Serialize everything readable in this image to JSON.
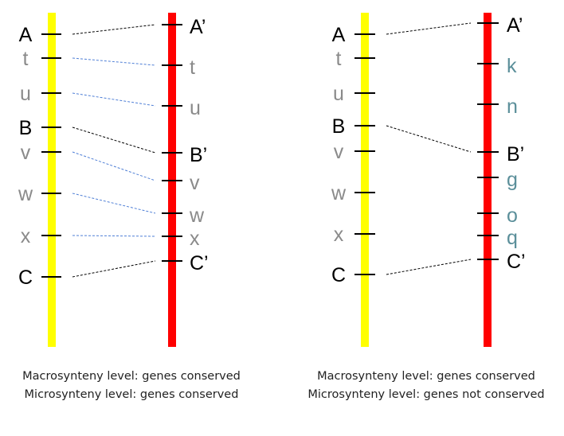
{
  "colors": {
    "chromosome_a": "#ffff00",
    "chromosome_b": "#ff0000",
    "anchor_label": "#000000",
    "conserved_gene_label": "#8a8a8a",
    "nonconserved_gene_label": "#5b8f9a",
    "macro_link": "#000000",
    "micro_link": "#4f7fd6"
  },
  "panels": [
    {
      "left_chromosome": {
        "genes": [
          {
            "label": "A",
            "kind": "anchor"
          },
          {
            "label": "t",
            "kind": "gene"
          },
          {
            "label": "u",
            "kind": "gene"
          },
          {
            "label": "B",
            "kind": "anchor"
          },
          {
            "label": "v",
            "kind": "gene"
          },
          {
            "label": "w",
            "kind": "gene"
          },
          {
            "label": "x",
            "kind": "gene"
          },
          {
            "label": "C",
            "kind": "anchor"
          }
        ]
      },
      "right_chromosome": {
        "genes": [
          {
            "label": "A’",
            "kind": "anchor"
          },
          {
            "label": "t",
            "kind": "gene"
          },
          {
            "label": "u",
            "kind": "gene"
          },
          {
            "label": "B’",
            "kind": "anchor"
          },
          {
            "label": "v",
            "kind": "gene"
          },
          {
            "label": "w",
            "kind": "gene"
          },
          {
            "label": "x",
            "kind": "gene"
          },
          {
            "label": "C’",
            "kind": "anchor"
          }
        ]
      },
      "links": [
        {
          "from": 0,
          "to": 0,
          "kind": "macro"
        },
        {
          "from": 1,
          "to": 1,
          "kind": "micro"
        },
        {
          "from": 2,
          "to": 2,
          "kind": "micro"
        },
        {
          "from": 3,
          "to": 3,
          "kind": "macro"
        },
        {
          "from": 4,
          "to": 4,
          "kind": "micro"
        },
        {
          "from": 5,
          "to": 5,
          "kind": "micro"
        },
        {
          "from": 6,
          "to": 6,
          "kind": "micro"
        },
        {
          "from": 7,
          "to": 7,
          "kind": "macro"
        }
      ],
      "caption": {
        "macro": "Macrosynteny level: genes conserved",
        "micro": "Microsynteny level: genes conserved"
      }
    },
    {
      "left_chromosome": {
        "genes": [
          {
            "label": "A",
            "kind": "anchor"
          },
          {
            "label": "t",
            "kind": "gene"
          },
          {
            "label": "u",
            "kind": "gene"
          },
          {
            "label": "B",
            "kind": "anchor"
          },
          {
            "label": "v",
            "kind": "gene"
          },
          {
            "label": "w",
            "kind": "gene"
          },
          {
            "label": "x",
            "kind": "gene"
          },
          {
            "label": "C",
            "kind": "anchor"
          }
        ]
      },
      "right_chromosome": {
        "genes": [
          {
            "label": "A’",
            "kind": "anchor"
          },
          {
            "label": "k",
            "kind": "novel"
          },
          {
            "label": "n",
            "kind": "novel"
          },
          {
            "label": "B’",
            "kind": "anchor"
          },
          {
            "label": "g",
            "kind": "novel"
          },
          {
            "label": "o",
            "kind": "novel"
          },
          {
            "label": "q",
            "kind": "novel"
          },
          {
            "label": "C’",
            "kind": "anchor"
          }
        ]
      },
      "links": [
        {
          "from": 0,
          "to": 0,
          "kind": "macro"
        },
        {
          "from": 3,
          "to": 3,
          "kind": "macro"
        },
        {
          "from": 7,
          "to": 7,
          "kind": "macro"
        }
      ],
      "caption": {
        "macro": "Macrosynteny level: genes conserved",
        "micro": "Microsynteny level: genes not conserved"
      }
    }
  ]
}
